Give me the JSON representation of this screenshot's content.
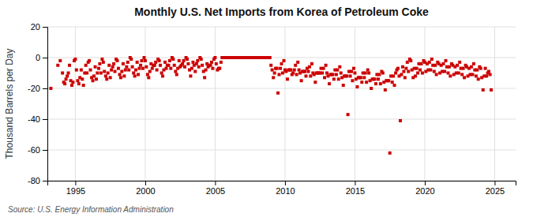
{
  "chart_data": {
    "type": "scatter",
    "title": "Monthly U.S. Net Imports from Korea of Petroleum Coke",
    "ylabel": "Thousand Barrels per Day",
    "annotations": [
      "Source: U.S. Energy Information Administration"
    ],
    "color": "#CC0000",
    "marker": "square",
    "grid": true,
    "xlim": [
      1993.0,
      2026.5
    ],
    "ylim": [
      -80,
      20
    ],
    "xticks": [
      1995,
      2000,
      2005,
      2010,
      2015,
      2020,
      2025
    ],
    "yticks": [
      -80,
      -60,
      -40,
      -20,
      0,
      20
    ],
    "x": [
      1993.25,
      1993.75,
      1993.92,
      1994.08,
      1994.17,
      1994.25,
      1994.33,
      1994.42,
      1994.5,
      1994.58,
      1994.67,
      1994.75,
      1994.83,
      1994.92,
      1995.0,
      1995.08,
      1995.17,
      1995.25,
      1995.33,
      1995.42,
      1995.5,
      1995.58,
      1995.67,
      1995.75,
      1995.83,
      1995.92,
      1996.0,
      1996.08,
      1996.17,
      1996.25,
      1996.33,
      1996.42,
      1996.5,
      1996.58,
      1996.67,
      1996.75,
      1996.83,
      1996.92,
      1997.0,
      1997.08,
      1997.17,
      1997.25,
      1997.33,
      1997.42,
      1997.5,
      1997.58,
      1997.67,
      1997.75,
      1997.83,
      1997.92,
      1998.0,
      1998.08,
      1998.17,
      1998.25,
      1998.33,
      1998.42,
      1998.5,
      1998.58,
      1998.67,
      1998.75,
      1998.83,
      1998.92,
      1999.0,
      1999.08,
      1999.17,
      1999.25,
      1999.33,
      1999.42,
      1999.5,
      1999.58,
      1999.67,
      1999.75,
      1999.83,
      1999.92,
      2000.0,
      2000.08,
      2000.17,
      2000.25,
      2000.33,
      2000.42,
      2000.5,
      2000.58,
      2000.67,
      2000.75,
      2000.83,
      2000.92,
      2001.0,
      2001.08,
      2001.17,
      2001.25,
      2001.33,
      2001.42,
      2001.5,
      2001.58,
      2001.67,
      2001.75,
      2001.83,
      2001.92,
      2002.0,
      2002.08,
      2002.17,
      2002.25,
      2002.33,
      2002.42,
      2002.5,
      2002.58,
      2002.67,
      2002.75,
      2002.83,
      2002.92,
      2003.0,
      2003.08,
      2003.17,
      2003.25,
      2003.33,
      2003.42,
      2003.5,
      2003.58,
      2003.67,
      2003.75,
      2003.83,
      2003.92,
      2004.0,
      2004.08,
      2004.17,
      2004.25,
      2004.33,
      2004.42,
      2004.5,
      2004.58,
      2004.67,
      2004.75,
      2004.83,
      2004.92,
      2005.0,
      2005.08,
      2005.17,
      2005.25,
      2005.33,
      2005.42,
      2005.5,
      2005.58,
      2005.67,
      2005.75,
      2005.83,
      2005.92,
      2006.0,
      2006.08,
      2006.17,
      2006.25,
      2006.33,
      2006.42,
      2006.5,
      2006.58,
      2006.67,
      2006.75,
      2006.83,
      2006.92,
      2007.0,
      2007.08,
      2007.17,
      2007.25,
      2007.33,
      2007.42,
      2007.5,
      2007.58,
      2007.67,
      2007.75,
      2007.83,
      2007.92,
      2008.0,
      2008.08,
      2008.17,
      2008.25,
      2008.33,
      2008.42,
      2008.5,
      2008.58,
      2008.67,
      2008.75,
      2008.83,
      2008.92,
      2009.0,
      2009.08,
      2009.17,
      2009.25,
      2009.33,
      2009.42,
      2009.5,
      2009.58,
      2009.67,
      2009.75,
      2009.83,
      2009.92,
      2010.0,
      2010.08,
      2010.17,
      2010.25,
      2010.33,
      2010.42,
      2010.5,
      2010.58,
      2010.67,
      2010.75,
      2010.83,
      2010.92,
      2011.0,
      2011.08,
      2011.17,
      2011.25,
      2011.33,
      2011.42,
      2011.5,
      2011.58,
      2011.67,
      2011.75,
      2011.83,
      2011.92,
      2012.0,
      2012.08,
      2012.17,
      2012.25,
      2012.33,
      2012.42,
      2012.5,
      2012.58,
      2012.67,
      2012.75,
      2012.83,
      2012.92,
      2013.0,
      2013.08,
      2013.17,
      2013.25,
      2013.33,
      2013.42,
      2013.5,
      2013.58,
      2013.67,
      2013.75,
      2013.83,
      2013.92,
      2014.0,
      2014.08,
      2014.17,
      2014.25,
      2014.33,
      2014.42,
      2014.5,
      2014.58,
      2014.67,
      2014.75,
      2014.83,
      2014.92,
      2015.0,
      2015.08,
      2015.17,
      2015.25,
      2015.33,
      2015.42,
      2015.5,
      2015.58,
      2015.67,
      2015.75,
      2015.83,
      2015.92,
      2016.0,
      2016.08,
      2016.17,
      2016.25,
      2016.33,
      2016.42,
      2016.5,
      2016.58,
      2016.67,
      2016.75,
      2016.83,
      2016.92,
      2017.0,
      2017.08,
      2017.17,
      2017.25,
      2017.33,
      2017.42,
      2017.5,
      2017.58,
      2017.67,
      2017.75,
      2017.83,
      2017.92,
      2018.0,
      2018.08,
      2018.17,
      2018.25,
      2018.33,
      2018.42,
      2018.5,
      2018.58,
      2018.67,
      2018.75,
      2018.83,
      2018.92,
      2019.0,
      2019.08,
      2019.17,
      2019.25,
      2019.33,
      2019.42,
      2019.5,
      2019.58,
      2019.67,
      2019.75,
      2019.83,
      2019.92,
      2020.0,
      2020.08,
      2020.17,
      2020.25,
      2020.33,
      2020.42,
      2020.5,
      2020.58,
      2020.67,
      2020.75,
      2020.83,
      2020.92,
      2021.0,
      2021.08,
      2021.17,
      2021.25,
      2021.33,
      2021.42,
      2021.5,
      2021.58,
      2021.67,
      2021.75,
      2021.83,
      2021.92,
      2022.0,
      2022.08,
      2022.17,
      2022.25,
      2022.33,
      2022.42,
      2022.5,
      2022.58,
      2022.67,
      2022.75,
      2022.83,
      2022.92,
      2023.0,
      2023.08,
      2023.17,
      2023.25,
      2023.33,
      2023.42,
      2023.5,
      2023.58,
      2023.67,
      2023.75,
      2023.83,
      2023.92,
      2024.0,
      2024.08,
      2024.17,
      2024.25,
      2024.33,
      2024.42,
      2024.5,
      2024.58,
      2024.67,
      2024.75
    ],
    "values": [
      -20,
      -5,
      -2,
      -10,
      -16,
      -17,
      -14,
      -12,
      -10,
      -5,
      -15,
      -18,
      -16,
      -2,
      -1,
      -8,
      -15,
      -17,
      -13,
      -8,
      -14,
      -18,
      -10,
      -5,
      -10,
      -3,
      -2,
      -8,
      -13,
      -15,
      -12,
      -6,
      -14,
      -10,
      -7,
      -4,
      -10,
      -1,
      -3,
      -9,
      -12,
      -14,
      -10,
      -5,
      -13,
      -8,
      -6,
      -4,
      -9,
      -1,
      -2,
      -7,
      -11,
      -13,
      -9,
      -4,
      -12,
      -8,
      -6,
      -3,
      -8,
      0,
      -1,
      -6,
      -10,
      -12,
      -8,
      -3,
      -11,
      -7,
      -5,
      -2,
      -7,
      0,
      -2,
      -6,
      -11,
      -13,
      -9,
      -4,
      -7,
      -5,
      -5,
      -3,
      -8,
      -1,
      -2,
      -5,
      -10,
      -12,
      -8,
      -3,
      -7,
      -5,
      -5,
      -2,
      -7,
      0,
      -1,
      -5,
      -9,
      -11,
      -7,
      -2,
      -6,
      -5,
      -4,
      -2,
      -6,
      0,
      -1,
      -4,
      -8,
      -12,
      -7,
      -3,
      -5,
      -9,
      -4,
      -2,
      -6,
      0,
      -1,
      -5,
      -9,
      -13,
      -8,
      -4,
      -6,
      -5,
      -5,
      -3,
      -7,
      -1,
      0,
      -4,
      -8,
      -7,
      -7,
      -3,
      0,
      0,
      0,
      0,
      0,
      0,
      0,
      0,
      0,
      0,
      0,
      0,
      0,
      0,
      0,
      0,
      0,
      0,
      0,
      0,
      0,
      0,
      0,
      0,
      0,
      0,
      0,
      0,
      0,
      0,
      0,
      0,
      0,
      0,
      0,
      0,
      0,
      0,
      0,
      0,
      0,
      0,
      -5,
      -8,
      -13,
      -10,
      -7,
      -7,
      -23,
      -11,
      -7,
      -4,
      -10,
      -2,
      -8,
      -9,
      -14,
      -8,
      -8,
      -8,
      -11,
      -10,
      -8,
      -5,
      -11,
      -3,
      -8,
      -10,
      -15,
      -9,
      -9,
      -9,
      -12,
      -7,
      -9,
      -6,
      -12,
      -4,
      -10,
      -11,
      -16,
      -10,
      -10,
      -10,
      -10,
      -7,
      -10,
      -7,
      -13,
      -5,
      -10,
      -12,
      -17,
      -11,
      -11,
      -11,
      -14,
      -8,
      -11,
      -8,
      -14,
      -6,
      -10,
      -13,
      -18,
      -12,
      -12,
      -12,
      -37,
      -9,
      -12,
      -9,
      -15,
      -7,
      -10,
      -14,
      -19,
      -13,
      -13,
      -13,
      -16,
      -10,
      -13,
      -10,
      -16,
      -8,
      -10,
      -15,
      -20,
      -14,
      -14,
      -14,
      -17,
      -11,
      -14,
      -11,
      -17,
      -9,
      -10,
      -16,
      -21,
      -15,
      -15,
      -15,
      -62,
      -12,
      -16,
      -12,
      -18,
      -10,
      -8,
      -7,
      -12,
      -41,
      -11,
      -6,
      -9,
      -13,
      -7,
      -3,
      -9,
      -1,
      -2,
      -8,
      -13,
      -7,
      -12,
      -7,
      -10,
      -4,
      -8,
      -4,
      -10,
      -2,
      -3,
      -9,
      -4,
      -8,
      -3,
      -8,
      -1,
      -5,
      -9,
      -5,
      -11,
      -3,
      -4,
      -10,
      -5,
      -9,
      -4,
      -9,
      -2,
      -6,
      -10,
      -6,
      -12,
      -4,
      -5,
      -11,
      -6,
      -10,
      -5,
      -10,
      -3,
      -7,
      -11,
      -7,
      -13,
      -5,
      -6,
      -12,
      -7,
      -11,
      -6,
      -11,
      -4,
      -8,
      -12,
      -8,
      -14,
      -6,
      -7,
      -13,
      -21,
      -12,
      -7,
      -12,
      -10,
      -9,
      -11,
      -21
    ]
  }
}
